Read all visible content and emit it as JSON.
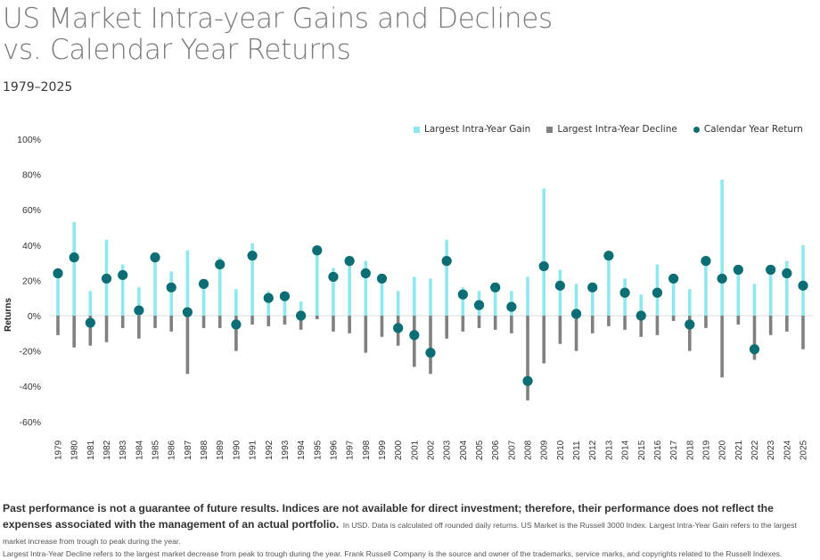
{
  "header": {
    "title_line1": "US Market Intra-year Gains and Declines",
    "title_line2": "vs. Calendar Year Returns",
    "subtitle": "1979–2025"
  },
  "colors": {
    "gain": "#8ee8f0",
    "decline": "#808080",
    "return": "#0b6e74",
    "zero_line": "#e3e3e3",
    "axis_text": "#333333"
  },
  "chart_data": {
    "type": "bar",
    "title": "US Market Intra-year Gains and Declines vs. Calendar Year Returns",
    "subtitle": "1979–2025",
    "xlabel": "",
    "ylabel": "Returns",
    "ylim": [
      -60,
      100
    ],
    "yticks": [
      -60,
      -40,
      -20,
      0,
      20,
      40,
      60,
      80,
      100
    ],
    "ytick_labels": [
      "-60%",
      "-40%",
      "-20%",
      "0%",
      "20%",
      "40%",
      "60%",
      "80%",
      "100%"
    ],
    "grid": false,
    "legend_position": "top-right",
    "categories": [
      "1979",
      "1980",
      "1981",
      "1982",
      "1983",
      "1984",
      "1985",
      "1986",
      "1987",
      "1988",
      "1989",
      "1990",
      "1991",
      "1992",
      "1993",
      "1994",
      "1995",
      "1996",
      "1997",
      "1998",
      "1999",
      "2000",
      "2001",
      "2002",
      "2003",
      "2004",
      "2005",
      "2006",
      "2007",
      "2008",
      "2009",
      "2010",
      "2011",
      "2012",
      "2013",
      "2014",
      "2015",
      "2016",
      "2017",
      "2018",
      "2019",
      "2020",
      "2021",
      "2022",
      "2023",
      "2024",
      "2025"
    ],
    "series": [
      {
        "name": "Largest Intra-Year Gain",
        "type": "bar",
        "values": [
          24,
          53,
          14,
          43,
          29,
          16,
          33,
          25,
          37,
          17,
          33,
          15,
          41,
          14,
          10,
          8,
          38,
          27,
          33,
          31,
          21,
          14,
          22,
          21,
          43,
          16,
          14,
          16,
          14,
          22,
          72,
          26,
          18,
          16,
          33,
          21,
          12,
          29,
          21,
          15,
          32,
          77,
          26,
          18,
          26,
          31,
          40
        ]
      },
      {
        "name": "Largest Intra-Year Decline",
        "type": "bar",
        "values": [
          -11,
          -18,
          -17,
          -15,
          -7,
          -13,
          -7,
          -9,
          -33,
          -7,
          -7,
          -20,
          -5,
          -6,
          -5,
          -8,
          -2,
          -9,
          -10,
          -21,
          -12,
          -17,
          -29,
          -33,
          -13,
          -9,
          -7,
          -8,
          -10,
          -48,
          -27,
          -16,
          -20,
          -10,
          -6,
          -8,
          -12,
          -11,
          -3,
          -20,
          -7,
          -35,
          -5,
          -25,
          -11,
          -9,
          -19
        ]
      },
      {
        "name": "Calendar Year Return",
        "type": "scatter",
        "values": [
          24,
          33,
          -4,
          21,
          23,
          3,
          33,
          16,
          2,
          18,
          29,
          -5,
          34,
          10,
          11,
          0,
          37,
          22,
          31,
          24,
          21,
          -7,
          -11,
          -21,
          31,
          12,
          6,
          16,
          5,
          -37,
          28,
          17,
          1,
          16,
          34,
          13,
          0,
          13,
          21,
          -5,
          31,
          21,
          26,
          -19,
          26,
          24,
          17
        ]
      }
    ]
  },
  "legend": {
    "items": [
      {
        "label": "Largest Intra-Year Gain",
        "shape": "square"
      },
      {
        "label": "Largest Intra-Year Decline",
        "shape": "square"
      },
      {
        "label": "Calendar Year Return",
        "shape": "dot"
      }
    ]
  },
  "footer": {
    "bold_text": "Past performance is not a guarantee of future results. Indices are not available for direct investment; therefore, their performance does not reflect the expenses associated with the management of an actual portfolio.",
    "note_line1": "In USD. Data is calculated off rounded daily returns. US Market is the Russell 3000 Index. Largest Intra-Year Gain refers to the largest market increase from trough to peak during the year.",
    "note_line2": "Largest Intra-Year Decline refers to the largest market decrease from peak to trough during the year. Frank Russell Company is the source and owner of the trademarks, service marks, and copyrights related to the Russell Indexes."
  }
}
